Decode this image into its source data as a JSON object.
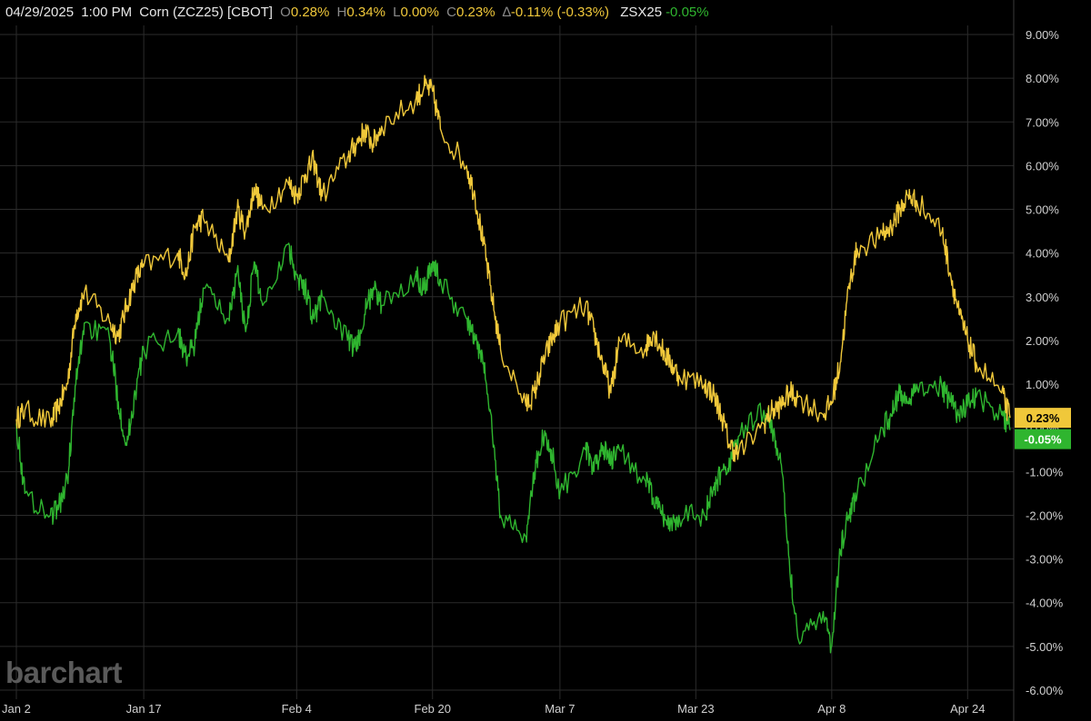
{
  "header": {
    "date": "04/29/2025",
    "time": "1:00 PM",
    "symbol": "Corn (ZCZ25) [CBOT]",
    "open_key": "O",
    "open": "0.28%",
    "high_key": "H",
    "high": "0.34%",
    "low_key": "L",
    "low": "0.00%",
    "close_key": "C",
    "close": "0.23%",
    "change_key": "∆",
    "change": "-0.11% (-0.33%)",
    "compare_symbol": "ZSX25",
    "compare_value": "-0.05%"
  },
  "logo_text": "barchart",
  "colors": {
    "background": "#000000",
    "grid": "#2b2b2b",
    "corn": "#f0c83a",
    "soybean": "#2fb52f",
    "label_text": "#d0d0d0"
  },
  "chart_data": {
    "type": "line",
    "x_ticks": [
      "Jan 2",
      "Jan 17",
      "Feb 4",
      "Feb 20",
      "Mar 7",
      "Mar 23",
      "Apr 8",
      "Apr 24"
    ],
    "x_tick_dates": [
      "2025-01-02",
      "2025-01-17",
      "2025-02-04",
      "2025-02-20",
      "2025-03-07",
      "2025-03-23",
      "2025-04-08",
      "2025-04-24"
    ],
    "x_range": [
      "2025-01-02",
      "2025-04-29"
    ],
    "y_ticks": [
      "9.00%",
      "8.00%",
      "7.00%",
      "6.00%",
      "5.00%",
      "4.00%",
      "3.00%",
      "2.00%",
      "1.00%",
      "0.00%",
      "-1.00%",
      "-2.00%",
      "-3.00%",
      "-4.00%",
      "-5.00%",
      "-6.00%"
    ],
    "y_tick_values": [
      9,
      8,
      7,
      6,
      5,
      4,
      3,
      2,
      1,
      0,
      -1,
      -2,
      -3,
      -4,
      -5,
      -6
    ],
    "ylim": [
      -6,
      9.5
    ],
    "grid": true,
    "last_value_labels": [
      {
        "series": "ZCZ25",
        "text": "0.23%",
        "value": 0.23
      },
      {
        "series": "ZSX25",
        "text": "-0.05%",
        "value": -0.05
      }
    ],
    "series": [
      {
        "name": "ZCZ25",
        "color": "#f0c83a",
        "x": [
          "2025-01-02",
          "2025-01-03",
          "2025-01-06",
          "2025-01-07",
          "2025-01-08",
          "2025-01-09",
          "2025-01-10",
          "2025-01-13",
          "2025-01-14",
          "2025-01-15",
          "2025-01-16",
          "2025-01-17",
          "2025-01-21",
          "2025-01-22",
          "2025-01-23",
          "2025-01-24",
          "2025-01-27",
          "2025-01-28",
          "2025-01-29",
          "2025-01-30",
          "2025-01-31",
          "2025-02-03",
          "2025-02-04",
          "2025-02-05",
          "2025-02-06",
          "2025-02-07",
          "2025-02-10",
          "2025-02-11",
          "2025-02-12",
          "2025-02-13",
          "2025-02-14",
          "2025-02-18",
          "2025-02-19",
          "2025-02-20",
          "2025-02-21",
          "2025-02-24",
          "2025-02-25",
          "2025-02-26",
          "2025-02-27",
          "2025-02-28",
          "2025-03-03",
          "2025-03-04",
          "2025-03-05",
          "2025-03-06",
          "2025-03-07",
          "2025-03-10",
          "2025-03-11",
          "2025-03-12",
          "2025-03-13",
          "2025-03-14",
          "2025-03-17",
          "2025-03-18",
          "2025-03-19",
          "2025-03-20",
          "2025-03-21",
          "2025-03-24",
          "2025-03-25",
          "2025-03-26",
          "2025-03-27",
          "2025-03-28",
          "2025-03-31",
          "2025-04-01",
          "2025-04-02",
          "2025-04-03",
          "2025-04-04",
          "2025-04-07",
          "2025-04-08",
          "2025-04-09",
          "2025-04-10",
          "2025-04-11",
          "2025-04-14",
          "2025-04-15",
          "2025-04-16",
          "2025-04-17",
          "2025-04-18",
          "2025-04-21",
          "2025-04-22",
          "2025-04-23",
          "2025-04-24",
          "2025-04-25",
          "2025-04-28",
          "2025-04-29"
        ],
        "y": [
          0.2,
          0.4,
          0.1,
          0.5,
          1.0,
          2.6,
          3.1,
          2.4,
          2.1,
          2.8,
          3.4,
          3.7,
          4.0,
          3.5,
          4.6,
          4.8,
          3.8,
          5.0,
          4.5,
          5.5,
          5.0,
          5.6,
          5.3,
          5.8,
          6.1,
          5.3,
          6.2,
          6.5,
          6.8,
          6.5,
          6.9,
          7.5,
          7.8,
          7.7,
          6.8,
          6.0,
          5.3,
          4.2,
          3.0,
          1.8,
          0.5,
          0.8,
          1.5,
          2.0,
          2.4,
          2.8,
          2.2,
          1.5,
          0.8,
          2.0,
          1.8,
          2.2,
          1.8,
          1.5,
          1.2,
          1.0,
          0.8,
          0.3,
          -0.4,
          -0.6,
          0.1,
          0.4,
          0.5,
          0.8,
          0.7,
          0.3,
          0.6,
          1.5,
          3.2,
          4.1,
          4.4,
          4.6,
          5.0,
          5.3,
          5.2,
          4.5,
          3.5,
          2.6,
          2.0,
          1.5,
          0.8,
          0.23
        ]
      },
      {
        "name": "ZSX25",
        "color": "#2fb52f",
        "x": [
          "2025-01-02",
          "2025-01-03",
          "2025-01-06",
          "2025-01-07",
          "2025-01-08",
          "2025-01-09",
          "2025-01-10",
          "2025-01-13",
          "2025-01-14",
          "2025-01-15",
          "2025-01-16",
          "2025-01-17",
          "2025-01-21",
          "2025-01-22",
          "2025-01-23",
          "2025-01-24",
          "2025-01-27",
          "2025-01-28",
          "2025-01-29",
          "2025-01-30",
          "2025-01-31",
          "2025-02-03",
          "2025-02-04",
          "2025-02-05",
          "2025-02-06",
          "2025-02-07",
          "2025-02-10",
          "2025-02-11",
          "2025-02-12",
          "2025-02-13",
          "2025-02-14",
          "2025-02-18",
          "2025-02-19",
          "2025-02-20",
          "2025-02-21",
          "2025-02-24",
          "2025-02-25",
          "2025-02-26",
          "2025-02-27",
          "2025-02-28",
          "2025-03-03",
          "2025-03-04",
          "2025-03-05",
          "2025-03-06",
          "2025-03-07",
          "2025-03-10",
          "2025-03-11",
          "2025-03-12",
          "2025-03-13",
          "2025-03-14",
          "2025-03-17",
          "2025-03-18",
          "2025-03-19",
          "2025-03-20",
          "2025-03-21",
          "2025-03-24",
          "2025-03-25",
          "2025-03-26",
          "2025-03-27",
          "2025-03-28",
          "2025-03-31",
          "2025-04-01",
          "2025-04-02",
          "2025-04-03",
          "2025-04-04",
          "2025-04-07",
          "2025-04-08",
          "2025-04-09",
          "2025-04-10",
          "2025-04-11",
          "2025-04-14",
          "2025-04-15",
          "2025-04-16",
          "2025-04-17",
          "2025-04-18",
          "2025-04-21",
          "2025-04-22",
          "2025-04-23",
          "2025-04-24",
          "2025-04-25",
          "2025-04-28",
          "2025-04-29"
        ],
        "y": [
          0.1,
          -1.5,
          -2.0,
          -1.8,
          -1.2,
          1.0,
          2.4,
          2.0,
          0.6,
          -0.4,
          0.8,
          1.8,
          2.2,
          1.6,
          1.9,
          3.2,
          2.5,
          3.6,
          2.2,
          3.8,
          2.8,
          4.2,
          3.5,
          3.2,
          2.5,
          3.0,
          2.0,
          1.8,
          2.6,
          3.2,
          2.8,
          3.5,
          3.2,
          3.8,
          3.3,
          2.5,
          2.0,
          1.5,
          0.0,
          -2.0,
          -2.5,
          -1.0,
          -0.2,
          -0.5,
          -1.5,
          -0.5,
          -1.0,
          -0.4,
          -0.8,
          -0.5,
          -1.2,
          -1.6,
          -2.0,
          -2.2,
          -2.0,
          -2.0,
          -1.5,
          -1.0,
          -0.8,
          -0.2,
          0.4,
          0.0,
          -0.8,
          -3.0,
          -4.8,
          -4.2,
          -5.0,
          -2.8,
          -2.0,
          -1.5,
          0.0,
          0.3,
          0.8,
          0.6,
          1.0,
          0.9,
          0.6,
          0.3,
          0.5,
          0.7,
          0.3,
          -0.05
        ]
      }
    ]
  }
}
